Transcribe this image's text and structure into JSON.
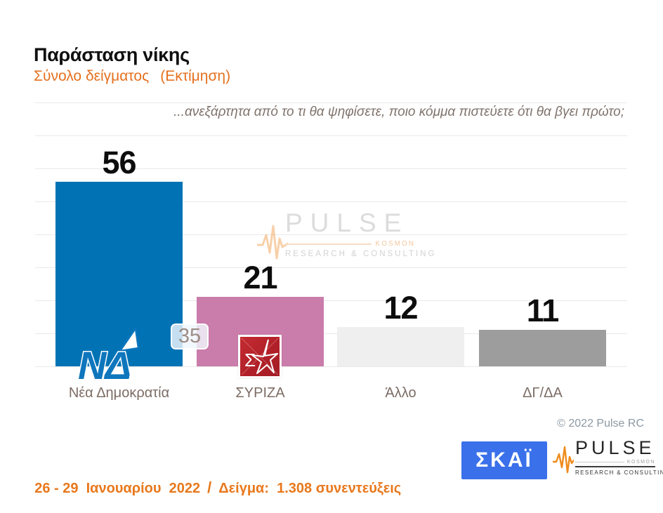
{
  "header": {
    "title": "Παράσταση νίκης",
    "subtitle": "Σύνολο δείγματος",
    "subtitle_note": "(Εκτίμηση)",
    "question": "...ανεξάρτητα από το τι θα ψηφίσετε, ποιο κόμμα πιστεύετε ότι θα βγει πρώτο;"
  },
  "chart_data": {
    "type": "bar",
    "title": "Παράσταση νίκης",
    "subtitle": "Σύνολο δείγματος (Εκτίμηση)",
    "categories": [
      "Νέα Δημοκρατία",
      "ΣΥΡΙΖΑ",
      "Άλλο",
      "ΔΓ/ΔΑ"
    ],
    "values": [
      56,
      21,
      12,
      11
    ],
    "bar_colors": [
      "#0173b5",
      "#ca7cab",
      "#efefef",
      "#9d9d9d"
    ],
    "lead_gap_label": "35",
    "ylim": [
      0,
      80
    ],
    "gridline_step": 10,
    "grid": true,
    "legend": false,
    "value_labels": true
  },
  "watermark": {
    "brand": "PULSE",
    "kosmon": "KOSMON",
    "tagline": "RESEARCH & CONSULTING"
  },
  "copyright": "© 2022 Pulse RC",
  "footer": {
    "dates": "26 - 29  Ιανουαρίου  2022",
    "separator": "/",
    "sample": "Δείγμα:  1.308 συνεντεύξεις"
  },
  "logos": {
    "skai": "ΣΚΑΪ",
    "pulse_brand": "PULSE",
    "pulse_kosmon": "KOSMON",
    "pulse_tagline": "RESEARCH & CONSULTING",
    "nd_letters": "ΝΔ",
    "syriza_sigma": "Σ"
  },
  "colors": {
    "accent_orange": "#e8781c",
    "bar_blue": "#0173b5",
    "bar_pink": "#ca7cab",
    "bar_lightgray": "#efefef",
    "bar_gray": "#9d9d9d",
    "skai_blue": "#3a70ea",
    "syriza_red": "#b5262c",
    "nd_blue": "#0e76bd"
  }
}
